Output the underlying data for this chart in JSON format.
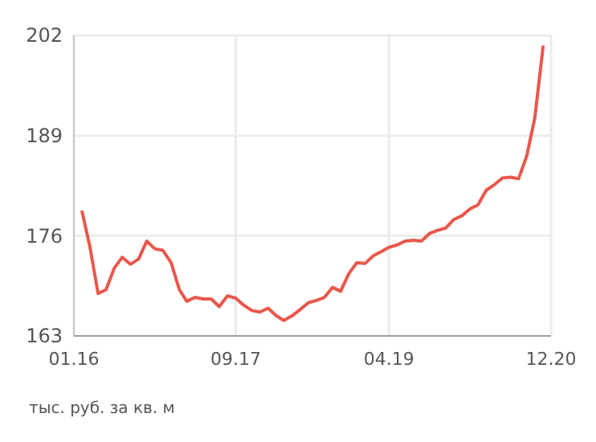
{
  "chart_data": {
    "type": "line",
    "x": [
      "2016-02",
      "2016-03",
      "2016-04",
      "2016-05",
      "2016-06",
      "2016-07",
      "2016-08",
      "2016-09",
      "2016-10",
      "2016-11",
      "2016-12",
      "2017-01",
      "2017-02",
      "2017-03",
      "2017-04",
      "2017-05",
      "2017-06",
      "2017-07",
      "2017-08",
      "2017-09",
      "2017-10",
      "2017-11",
      "2017-12",
      "2018-01",
      "2018-02",
      "2018-03",
      "2018-04",
      "2018-05",
      "2018-06",
      "2018-07",
      "2018-08",
      "2018-09",
      "2018-10",
      "2018-11",
      "2018-12",
      "2019-01",
      "2019-02",
      "2019-03",
      "2019-04",
      "2019-05",
      "2019-06",
      "2019-07",
      "2019-08",
      "2019-09",
      "2019-10",
      "2019-11",
      "2019-12",
      "2020-01",
      "2020-02",
      "2020-03",
      "2020-04",
      "2020-05",
      "2020-06",
      "2020-07",
      "2020-08",
      "2020-09",
      "2020-10",
      "2020-11"
    ],
    "series": [
      {
        "color": "#e9574b",
        "values": [
          179.1,
          174.6,
          168.5,
          169.0,
          171.8,
          173.2,
          172.3,
          173.0,
          175.3,
          174.3,
          174.1,
          172.5,
          169.0,
          167.5,
          168.0,
          167.8,
          167.8,
          166.8,
          168.2,
          167.9,
          167.0,
          166.3,
          166.1,
          166.6,
          165.6,
          165.0,
          165.6,
          166.4,
          167.3,
          167.6,
          168.0,
          169.3,
          168.8,
          171.1,
          172.5,
          172.4,
          173.4,
          173.9,
          174.5,
          174.8,
          175.3,
          175.4,
          175.3,
          176.3,
          176.7,
          177.0,
          178.1,
          178.6,
          179.5,
          180.0,
          181.9,
          182.6,
          183.5,
          183.6,
          183.4,
          186.4,
          191.3,
          200.5
        ]
      }
    ],
    "xlim": [
      "2016-01",
      "2020-12"
    ],
    "xticks": [
      {
        "value": "2016-01",
        "label": "01.16"
      },
      {
        "value": "2017-09",
        "label": "09.17"
      },
      {
        "value": "2019-04",
        "label": "04.19"
      },
      {
        "value": "2020-12",
        "label": "12.20"
      }
    ],
    "ylim": [
      163,
      202
    ],
    "yticks": [
      163,
      176,
      189,
      202
    ],
    "grid": true,
    "line_style": "solid",
    "annotations": [
      "тыс. руб. за кв. м"
    ]
  }
}
